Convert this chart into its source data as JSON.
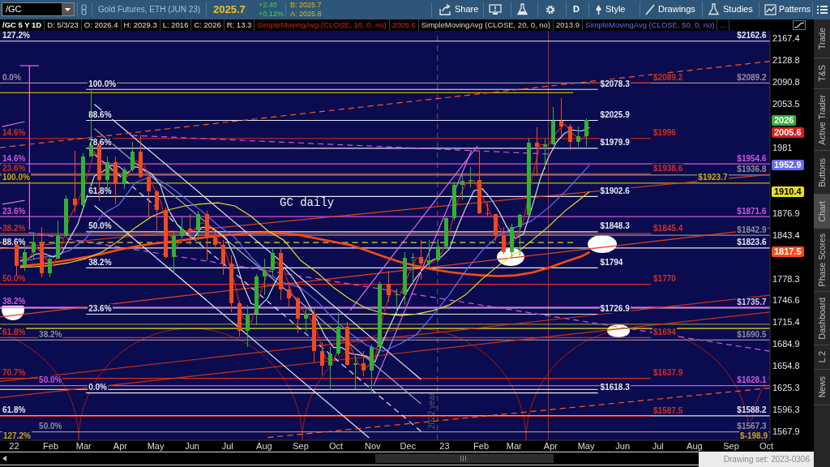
{
  "chart_data": {
    "type": "candlestick",
    "title": "Gold Futures, ETH (JUN 23)",
    "subtitle": "/GC 5 Y 1D",
    "log": true,
    "legend": "top",
    "xlim": [
      "2021-12-20",
      "2023-10-04"
    ],
    "ylim": [
      1556.5,
      2181.1
    ],
    "xticks": [
      {
        "value": "2022-01-01",
        "label": "22"
      },
      {
        "value": "2022-02-01",
        "label": "Feb"
      },
      {
        "value": "2022-03-01",
        "label": "Mar"
      },
      {
        "value": "2022-04-01",
        "label": "Apr"
      },
      {
        "value": "2022-05-01",
        "label": "May"
      },
      {
        "value": "2022-06-01",
        "label": "Jun"
      },
      {
        "value": "2022-07-01",
        "label": "Jul"
      },
      {
        "value": "2022-08-01",
        "label": "Aug"
      },
      {
        "value": "2022-09-01",
        "label": "Sep"
      },
      {
        "value": "2022-10-01",
        "label": "Oct"
      },
      {
        "value": "2022-11-01",
        "label": "Nov"
      },
      {
        "value": "2022-12-01",
        "label": "Dec"
      },
      {
        "value": "2023-01-01",
        "label": "23"
      },
      {
        "value": "2023-02-01",
        "label": "Feb"
      },
      {
        "value": "2023-03-01",
        "label": "Mar"
      },
      {
        "value": "2023-04-01",
        "label": "Apr"
      },
      {
        "value": "2023-05-01",
        "label": "May"
      },
      {
        "value": "2023-06-01",
        "label": "Jun"
      },
      {
        "value": "2023-07-01",
        "label": "Jul"
      },
      {
        "value": "2023-08-01",
        "label": "Aug"
      },
      {
        "value": "2023-09-01",
        "label": "Sep"
      },
      {
        "value": "2023-10-01",
        "label": "Oct"
      }
    ],
    "yticks": [
      2167.4,
      2128.8,
      2090.8,
      2053.5,
      1981,
      1876.9,
      1843.4,
      1778.3,
      1746.6,
      1715.4,
      1684.9,
      1654.8,
      1625.3,
      1596.3,
      1567.9
    ],
    "x": [
      "2022-01-03",
      "2022-01-10",
      "2022-01-17",
      "2022-01-24",
      "2022-01-31",
      "2022-02-07",
      "2022-02-14",
      "2022-02-21",
      "2022-02-28",
      "2022-03-07",
      "2022-03-14",
      "2022-03-21",
      "2022-03-28",
      "2022-04-04",
      "2022-04-11",
      "2022-04-18",
      "2022-04-25",
      "2022-05-02",
      "2022-05-09",
      "2022-05-16",
      "2022-05-23",
      "2022-05-30",
      "2022-06-06",
      "2022-06-13",
      "2022-06-20",
      "2022-06-27",
      "2022-07-04",
      "2022-07-11",
      "2022-07-18",
      "2022-07-25",
      "2022-08-01",
      "2022-08-08",
      "2022-08-15",
      "2022-08-22",
      "2022-08-29",
      "2022-09-05",
      "2022-09-12",
      "2022-09-19",
      "2022-09-26",
      "2022-10-03",
      "2022-10-10",
      "2022-10-17",
      "2022-10-24",
      "2022-10-31",
      "2022-11-07",
      "2022-11-14",
      "2022-11-21",
      "2022-11-28",
      "2022-12-05",
      "2022-12-12",
      "2022-12-19",
      "2022-12-26",
      "2023-01-02",
      "2023-01-09",
      "2023-01-16",
      "2023-01-23",
      "2023-01-30",
      "2023-02-06",
      "2023-02-13",
      "2023-02-20",
      "2023-02-27",
      "2023-03-06",
      "2023-03-13",
      "2023-03-20",
      "2023-03-27",
      "2023-04-03",
      "2023-04-10",
      "2023-04-17",
      "2023-04-24",
      "2023-05-01"
    ],
    "ohlc": [
      [
        1829,
        1831,
        1782,
        1797
      ],
      [
        1797,
        1830,
        1790,
        1817
      ],
      [
        1817,
        1848,
        1806,
        1832
      ],
      [
        1832,
        1855,
        1780,
        1786
      ],
      [
        1786,
        1812,
        1780,
        1808
      ],
      [
        1808,
        1865,
        1806,
        1842
      ],
      [
        1842,
        1905,
        1840,
        1899
      ],
      [
        1899,
        1976,
        1878,
        1889
      ],
      [
        1889,
        1972,
        1886,
        1966
      ],
      [
        1966,
        2078,
        1966,
        1985
      ],
      [
        1985,
        1992,
        1895,
        1929
      ],
      [
        1929,
        1966,
        1910,
        1958
      ],
      [
        1958,
        1967,
        1890,
        1923
      ],
      [
        1923,
        1950,
        1915,
        1945
      ],
      [
        1945,
        1990,
        1942,
        1974
      ],
      [
        1974,
        2003,
        1932,
        1934
      ],
      [
        1934,
        1939,
        1872,
        1911
      ],
      [
        1911,
        1913,
        1850,
        1882
      ],
      [
        1882,
        1886,
        1808,
        1810
      ],
      [
        1810,
        1850,
        1786,
        1842
      ],
      [
        1842,
        1870,
        1840,
        1853
      ],
      [
        1853,
        1876,
        1829,
        1850
      ],
      [
        1850,
        1880,
        1836,
        1875
      ],
      [
        1875,
        1880,
        1805,
        1840
      ],
      [
        1840,
        1847,
        1822,
        1829
      ],
      [
        1829,
        1836,
        1784,
        1801
      ],
      [
        1801,
        1813,
        1730,
        1742
      ],
      [
        1742,
        1745,
        1696,
        1703
      ],
      [
        1703,
        1740,
        1681,
        1727
      ],
      [
        1727,
        1785,
        1711,
        1781
      ],
      [
        1781,
        1808,
        1754,
        1791
      ],
      [
        1791,
        1824,
        1782,
        1816
      ],
      [
        1816,
        1824,
        1747,
        1762
      ],
      [
        1762,
        1773,
        1734,
        1749
      ],
      [
        1749,
        1752,
        1700,
        1721
      ],
      [
        1721,
        1736,
        1702,
        1728
      ],
      [
        1728,
        1735,
        1660,
        1675
      ],
      [
        1675,
        1688,
        1642,
        1655
      ],
      [
        1655,
        1682,
        1622,
        1672
      ],
      [
        1672,
        1730,
        1668,
        1709
      ],
      [
        1709,
        1716,
        1655,
        1656
      ],
      [
        1656,
        1668,
        1623,
        1658
      ],
      [
        1658,
        1675,
        1641,
        1648
      ],
      [
        1648,
        1684,
        1618,
        1681
      ],
      [
        1681,
        1774,
        1673,
        1771
      ],
      [
        1771,
        1790,
        1745,
        1754
      ],
      [
        1754,
        1764,
        1728,
        1755
      ],
      [
        1755,
        1818,
        1740,
        1809
      ],
      [
        1809,
        1816,
        1770,
        1810
      ],
      [
        1810,
        1836,
        1777,
        1800
      ],
      [
        1800,
        1836,
        1793,
        1805
      ],
      [
        1805,
        1837,
        1803,
        1826
      ],
      [
        1826,
        1871,
        1825,
        1869
      ],
      [
        1869,
        1926,
        1866,
        1921
      ],
      [
        1921,
        1940,
        1897,
        1928
      ],
      [
        1928,
        1949,
        1917,
        1929
      ],
      [
        1929,
        1975,
        1876,
        1877
      ],
      [
        1877,
        1893,
        1870,
        1875
      ],
      [
        1875,
        1876,
        1835,
        1842
      ],
      [
        1842,
        1856,
        1815,
        1817
      ],
      [
        1817,
        1860,
        1810,
        1856
      ],
      [
        1856,
        1877,
        1813,
        1874
      ],
      [
        1874,
        1997,
        1872,
        1989
      ],
      [
        1989,
        2014,
        1935,
        1983
      ],
      [
        1983,
        1995,
        1946,
        1987
      ],
      [
        1987,
        2049,
        1985,
        2025
      ],
      [
        2025,
        2063,
        2001,
        2016
      ],
      [
        2016,
        2020,
        1977,
        1990
      ],
      [
        1990,
        2016,
        1983,
        1999
      ],
      [
        1999,
        2029.3,
        1982,
        2026
      ]
    ],
    "colors": [
      "#f04a1c",
      "#34b034",
      "#34b034",
      "#f04a1c",
      "#34b034",
      "#34b034",
      "#34b034",
      "#f04a1c",
      "#34b034",
      "#34b034",
      "#f04a1c",
      "#34b034",
      "#f04a1c",
      "#34b034",
      "#34b034",
      "#f04a1c",
      "#f04a1c",
      "#f04a1c",
      "#f04a1c",
      "#34b034",
      "#34b034",
      "#f04a1c",
      "#34b034",
      "#f04a1c",
      "#f04a1c",
      "#f04a1c",
      "#f04a1c",
      "#f04a1c",
      "#34b034",
      "#34b034",
      "#34b034",
      "#34b034",
      "#f04a1c",
      "#f04a1c",
      "#f04a1c",
      "#34b034",
      "#f04a1c",
      "#f04a1c",
      "#34b034",
      "#34b034",
      "#f04a1c",
      "#34b034",
      "#f04a1c",
      "#34b034",
      "#34b034",
      "#f04a1c",
      "#34b034",
      "#34b034",
      "#34b034",
      "#f04a1c",
      "#34b034",
      "#34b034",
      "#34b034",
      "#34b034",
      "#34b034",
      "#34b034",
      "#f04a1c",
      "#f04a1c",
      "#f04a1c",
      "#f04a1c",
      "#34b034",
      "#34b034",
      "#34b034",
      "#f04a1c",
      "#34b034",
      "#34b034",
      "#f04a1c",
      "#f04a1c",
      "#34b034",
      "#34b034"
    ],
    "series": [
      {
        "type": "line",
        "name": "SimpleMovingAvg (CLOSE, 10, 0, no)",
        "color": "#d42020",
        "x": [
          "2022-01-06",
          "2022-01-13",
          "2022-01-20",
          "2022-01-27",
          "2022-02-03",
          "2022-02-10",
          "2022-02-17",
          "2022-02-24",
          "2022-03-03",
          "2022-03-10",
          "2022-03-17",
          "2022-03-24",
          "2022-03-31",
          "2022-04-07",
          "2022-04-14",
          "2022-04-21",
          "2022-04-28",
          "2022-05-05",
          "2022-05-12",
          "2022-05-19",
          "2022-05-26",
          "2022-06-02",
          "2022-06-09",
          "2022-06-16",
          "2022-06-23",
          "2022-06-30",
          "2022-07-07",
          "2022-07-14",
          "2022-07-21",
          "2022-07-28",
          "2022-08-04",
          "2022-08-11",
          "2022-08-18",
          "2022-08-25",
          "2022-09-01",
          "2022-09-08",
          "2022-09-15",
          "2022-09-22",
          "2022-09-29",
          "2022-10-06",
          "2022-10-13",
          "2022-10-20",
          "2022-10-27",
          "2022-11-03",
          "2022-11-10",
          "2022-11-17",
          "2022-11-24",
          "2022-12-01",
          "2022-12-08",
          "2022-12-15",
          "2022-12-22",
          "2022-12-29",
          "2023-01-05",
          "2023-01-12",
          "2023-01-19",
          "2023-01-26",
          "2023-02-02",
          "2023-02-09",
          "2023-02-16",
          "2023-02-23",
          "2023-03-02",
          "2023-03-09",
          "2023-03-16",
          "2023-03-23",
          "2023-03-30",
          "2023-04-06",
          "2023-04-13",
          "2023-04-20",
          "2023-04-27",
          "2023-05-04"
        ],
        "values": [
          1810,
          1807,
          1825,
          1809,
          1797,
          1825,
          1870,
          1894,
          1928,
          1975,
          1957,
          1944,
          1940,
          1934,
          1960,
          1954,
          1922,
          1896,
          1846,
          1826,
          1848,
          1851,
          1862,
          1858,
          1834,
          1815,
          1771,
          1722,
          1715,
          1754,
          1786,
          1803,
          1789,
          1755,
          1735,
          1724,
          1701,
          1665,
          1663,
          1690,
          1682,
          1657,
          1653,
          1664,
          1726,
          1762,
          1754,
          1782,
          1809,
          1805,
          1802,
          1815,
          1847,
          1895,
          1924,
          1928,
          1903,
          1876,
          1858,
          1829,
          1836,
          1865,
          1931,
          1986,
          1985,
          2006,
          2020,
          2003,
          1994,
          2005.6
        ]
      },
      {
        "type": "line",
        "name": "SimpleMovingAvg (CLOSE, 20, 0, no)",
        "color": "#d8d8d8",
        "x": [
          "2022-01-06",
          "2022-01-13",
          "2022-01-20",
          "2022-01-27",
          "2022-02-03",
          "2022-02-10",
          "2022-02-17",
          "2022-02-24",
          "2022-03-03",
          "2022-03-10",
          "2022-03-17",
          "2022-03-24",
          "2022-03-31",
          "2022-04-07",
          "2022-04-14",
          "2022-04-21",
          "2022-04-28",
          "2022-05-05",
          "2022-05-12",
          "2022-05-19",
          "2022-05-26",
          "2022-06-02",
          "2022-06-09",
          "2022-06-16",
          "2022-06-23",
          "2022-06-30",
          "2022-07-07",
          "2022-07-14",
          "2022-07-21",
          "2022-07-28",
          "2022-08-04",
          "2022-08-11",
          "2022-08-18",
          "2022-08-25",
          "2022-09-01",
          "2022-09-08",
          "2022-09-15",
          "2022-09-22",
          "2022-09-29",
          "2022-10-06",
          "2022-10-13",
          "2022-10-20",
          "2022-10-27",
          "2022-11-03",
          "2022-11-10",
          "2022-11-17",
          "2022-11-24",
          "2022-12-01",
          "2022-12-08",
          "2022-12-15",
          "2022-12-22",
          "2022-12-29",
          "2023-01-05",
          "2023-01-12",
          "2023-01-19",
          "2023-01-26",
          "2023-02-02",
          "2023-02-09",
          "2023-02-16",
          "2023-02-23",
          "2023-03-02",
          "2023-03-09",
          "2023-03-16",
          "2023-03-23",
          "2023-03-30",
          "2023-04-06",
          "2023-04-13",
          "2023-04-20",
          "2023-04-27",
          "2023-05-04"
        ],
        "values": [
          1805,
          1808,
          1815,
          1815,
          1810,
          1815,
          1838,
          1860,
          1898,
          1935,
          1942,
          1952,
          1950,
          1940,
          1950,
          1946,
          1938,
          1920,
          1882,
          1860,
          1846,
          1838,
          1855,
          1855,
          1848,
          1838,
          1810,
          1770,
          1742,
          1738,
          1750,
          1775,
          1795,
          1780,
          1762,
          1740,
          1718,
          1695,
          1680,
          1680,
          1672,
          1670,
          1668,
          1660,
          1690,
          1715,
          1740,
          1762,
          1780,
          1795,
          1806,
          1810,
          1822,
          1855,
          1885,
          1912,
          1915,
          1900,
          1880,
          1855,
          1838,
          1845,
          1885,
          1930,
          1965,
          1990,
          2005,
          2010,
          2008,
          2013.9
        ]
      },
      {
        "type": "line",
        "name": "SimpleMovingAvg (CLOSE, 50, 0, no)",
        "color": "#6a6af5",
        "x": [
          "2022-01-06",
          "2022-01-20",
          "2022-02-03",
          "2022-02-17",
          "2022-03-03",
          "2022-03-17",
          "2022-03-31",
          "2022-04-14",
          "2022-04-28",
          "2022-05-12",
          "2022-05-26",
          "2022-06-09",
          "2022-06-23",
          "2022-07-07",
          "2022-07-21",
          "2022-08-04",
          "2022-08-18",
          "2022-09-01",
          "2022-09-15",
          "2022-09-29",
          "2022-10-13",
          "2022-10-27",
          "2022-11-10",
          "2022-11-24",
          "2022-12-08",
          "2022-12-22",
          "2023-01-05",
          "2023-01-19",
          "2023-02-02",
          "2023-02-16",
          "2023-03-02",
          "2023-03-16",
          "2023-03-30",
          "2023-04-13",
          "2023-04-27",
          "2023-05-04"
        ],
        "values": [
          1803,
          1808,
          1812,
          1820,
          1838,
          1875,
          1890,
          1925,
          1935,
          1920,
          1900,
          1880,
          1858,
          1840,
          1810,
          1785,
          1772,
          1765,
          1745,
          1720,
          1700,
          1683,
          1675,
          1685,
          1698,
          1725,
          1755,
          1790,
          1820,
          1843,
          1855,
          1865,
          1885,
          1910,
          1938,
          1952.9
        ]
      },
      {
        "type": "line",
        "color": "#e8e020",
        "x": [
          "2022-01-06",
          "2022-01-20",
          "2022-02-03",
          "2022-02-17",
          "2022-03-03",
          "2022-03-17",
          "2022-03-31",
          "2022-04-14",
          "2022-04-28",
          "2022-05-12",
          "2022-05-26",
          "2022-06-09",
          "2022-06-23",
          "2022-07-07",
          "2022-07-21",
          "2022-08-04",
          "2022-08-18",
          "2022-09-01",
          "2022-09-15",
          "2022-09-29",
          "2022-10-13",
          "2022-10-27",
          "2022-11-10",
          "2022-11-24",
          "2022-12-08",
          "2022-12-22",
          "2023-01-05",
          "2023-01-19",
          "2023-02-02",
          "2023-02-16",
          "2023-03-02",
          "2023-03-16",
          "2023-03-30",
          "2023-04-13",
          "2023-04-27",
          "2023-05-04"
        ],
        "values": [
          1795,
          1796,
          1798,
          1802,
          1808,
          1818,
          1835,
          1855,
          1872,
          1882,
          1888,
          1891,
          1893,
          1888,
          1872,
          1850,
          1835,
          1805,
          1787,
          1765,
          1748,
          1735,
          1728,
          1725,
          1727,
          1732,
          1740,
          1755,
          1778,
          1798,
          1815,
          1835,
          1856,
          1880,
          1900,
          1910.4
        ]
      },
      {
        "type": "line",
        "color": "#ff4a14",
        "x": [
          "2022-01-06",
          "2022-01-20",
          "2022-02-03",
          "2022-02-17",
          "2022-03-03",
          "2022-03-17",
          "2022-03-31",
          "2022-04-14",
          "2022-04-28",
          "2022-05-12",
          "2022-05-26",
          "2022-06-09",
          "2022-06-23",
          "2022-07-07",
          "2022-07-21",
          "2022-08-04",
          "2022-08-18",
          "2022-09-01",
          "2022-09-15",
          "2022-09-29",
          "2022-10-13",
          "2022-10-27",
          "2022-11-10",
          "2022-11-24",
          "2022-12-08",
          "2022-12-22",
          "2023-01-05",
          "2023-01-19",
          "2023-02-02",
          "2023-02-16",
          "2023-03-02",
          "2023-03-16",
          "2023-03-30",
          "2023-04-13",
          "2023-04-27",
          "2023-05-04"
        ],
        "values": [
          1797,
          1799,
          1802,
          1806,
          1810,
          1815,
          1821,
          1826,
          1830,
          1833,
          1836,
          1839,
          1842,
          1844,
          1846,
          1847,
          1846,
          1843,
          1838,
          1833,
          1828,
          1820,
          1811,
          1803,
          1797,
          1792,
          1788,
          1785,
          1783,
          1782,
          1783,
          1787,
          1794,
          1803,
          1811,
          1817.5
        ]
      },
      {
        "type": "line",
        "color": "#ff5a1e",
        "line_style": "dashed",
        "x": [
          "2021-12-20",
          "2023-10-04"
        ],
        "values": [
          1981,
          2127
        ]
      },
      {
        "type": "line",
        "color": "#ff5a1e",
        "line_style": "dashed",
        "x": [
          "2022-08-04",
          "2023-10-04"
        ],
        "values": [
          1560,
          1625
        ]
      },
      {
        "type": "line",
        "color": "#d058dc",
        "line_style": "dashed",
        "x": [
          "2021-12-20",
          "2023-10-04"
        ],
        "values": [
          1854,
          1675
        ]
      },
      {
        "type": "line",
        "color": "#d058dc",
        "line_style": "dashed",
        "x": [
          "2022-04-11",
          "2023-03-30"
        ],
        "values": [
          2001,
          1970.5
        ]
      },
      {
        "type": "line",
        "color": "#e6e6ee",
        "x": [
          "2022-03-10",
          "2022-12-12"
        ],
        "values": [
          2053.2,
          1636.5
        ]
      },
      {
        "type": "line",
        "color": "#a0a0b0",
        "x": [
          "2022-03-10",
          "2022-12-12"
        ],
        "values": [
          2012.5,
          1604
        ]
      },
      {
        "type": "line",
        "color": "#e6e6ee",
        "line_style": "dashed",
        "x": [
          "2022-03-10",
          "2022-12-12"
        ],
        "values": [
          1970,
          1568
        ]
      },
      {
        "type": "line",
        "color": "#e6e6ee",
        "x": [
          "2022-03-10",
          "2022-10-29"
        ],
        "values": [
          1888.8,
          1559.7
        ]
      },
      {
        "type": "line",
        "color": "#e070e8",
        "x": [
          "2022-10-13",
          "2023-01-29"
        ],
        "values": [
          1732.2,
          1983.7
        ]
      },
      {
        "type": "line",
        "color": "#e070e8",
        "x": [
          "2022-11-02",
          "2023-01-24"
        ],
        "values": [
          1629,
          1977
        ]
      },
      {
        "type": "line",
        "color": "#e070e8",
        "x": [
          "2022-01-14",
          "2022-01-14"
        ],
        "values": [
          2119.3,
          1851.8
        ]
      },
      {
        "type": "line",
        "color": "#e070e8",
        "x": [
          "2022-01-06",
          "2022-01-22"
        ],
        "values": [
          2119.3,
          2119.3
        ]
      },
      {
        "type": "line",
        "color": "#e070e8",
        "x": [
          "2021-12-22",
          "2022-01-10"
        ],
        "values": [
          2015.7,
          2023.8
        ]
      },
      {
        "type": "line",
        "color": "#e070e8",
        "x": [
          "2021-12-22",
          "2022-01-10"
        ],
        "values": [
          1890.6,
          1896.8
        ]
      },
      {
        "type": "line",
        "color": "#e0401e",
        "x": [
          "2021-12-20",
          "2023-10-04"
        ],
        "values": [
          1722.9,
          1854
        ]
      },
      {
        "type": "line",
        "color": "#e0401e",
        "x": [
          "2021-12-20",
          "2023-10-04"
        ],
        "values": [
          1822.3,
          1937.8
        ]
      },
      {
        "type": "line",
        "color": "#c8321a",
        "x": [
          "2021-12-20",
          "2023-10-04"
        ],
        "values": [
          1633.9,
          1754
        ]
      },
      {
        "type": "line",
        "color": "#c8321a",
        "x": [
          "2021-12-20",
          "2023-10-04"
        ],
        "values": [
          1612.2,
          1729.9
        ]
      },
      {
        "type": "line",
        "color": "#d8d820",
        "line_style": "dashed",
        "x": [
          "2021-12-20",
          "2023-04-20"
        ],
        "values": [
          1832,
          1832
        ]
      },
      {
        "type": "line",
        "color": "#c8b000",
        "x": [
          "2021-12-20",
          "2023-04-20"
        ],
        "values": [
          2072.7,
          2072.7
        ]
      },
      {
        "type": "line",
        "color": "#8c8c2c",
        "x": [
          "2021-12-20",
          "2023-10-04"
        ],
        "values": [
          1712.6,
          1712.6
        ]
      },
      {
        "type": "line",
        "color": "#e2e21e",
        "x": [
          "2021-12-20",
          "2023-10-04"
        ],
        "values": [
          1706.8,
          1706.8
        ]
      },
      {
        "type": "line",
        "color": "#e2e21e",
        "x": [
          "2021-12-20",
          "2023-05-11"
        ],
        "values": [
          1623,
          1623
        ]
      },
      {
        "type": "line",
        "color": "#e6e6ee",
        "x": [
          "2022-03-03",
          "2023-05-11"
        ],
        "values": [
          2078.3,
          2078.3
        ],
        "value_labels": [
          null,
          "$2078.3"
        ]
      },
      {
        "type": "line",
        "color": "#e6e6ee",
        "x": [
          "2022-03-03",
          "2023-05-11"
        ],
        "values": [
          2025.9,
          2025.9
        ],
        "value_labels": [
          null,
          "$2025.9"
        ]
      },
      {
        "type": "line",
        "color": "#e6e6ee",
        "x": [
          "2022-03-03",
          "2023-05-11"
        ],
        "values": [
          1979.9,
          1979.9
        ],
        "value_labels": [
          null,
          "$1979.9"
        ]
      },
      {
        "type": "line",
        "color": "#e6e6ee",
        "x": [
          "2022-03-03",
          "2023-05-11"
        ],
        "values": [
          1902.6,
          1902.6
        ],
        "value_labels": [
          null,
          "$1902.6"
        ]
      },
      {
        "type": "line",
        "color": "#e6e6ee",
        "x": [
          "2022-03-03",
          "2023-05-11"
        ],
        "values": [
          1848.3,
          1848.3
        ],
        "value_labels": [
          null,
          "$1848.3"
        ]
      },
      {
        "type": "line",
        "color": "#e6e6ee",
        "x": [
          "2022-03-03",
          "2023-05-11"
        ],
        "values": [
          1794,
          1794
        ],
        "value_labels": [
          null,
          "$1794"
        ]
      },
      {
        "type": "line",
        "color": "#e6e6ee",
        "x": [
          "2022-03-03",
          "2023-05-11"
        ],
        "values": [
          1726.9,
          1726.9
        ],
        "value_labels": [
          null,
          "$1726.9"
        ]
      },
      {
        "type": "line",
        "color": "#e6e6ee",
        "x": [
          "2022-03-03",
          "2023-05-11"
        ],
        "values": [
          1618.3,
          1618.3
        ],
        "value_labels": [
          null,
          "$1618.3"
        ]
      },
      {
        "type": "line",
        "color": "#d2301e",
        "x": [
          "2023-05-04",
          "2023-06-25"
        ],
        "values": [
          2089.2,
          2089.2
        ],
        "value_labels": [
          null,
          "$2089.2"
        ]
      },
      {
        "type": "line",
        "color": "#d2301e",
        "x": [
          "2021-12-20",
          "2023-06-25"
        ],
        "values": [
          1996,
          1996
        ],
        "value_labels": [
          null,
          "$1996"
        ]
      },
      {
        "type": "line",
        "color": "#d2301e",
        "x": [
          "2021-12-20",
          "2023-06-25"
        ],
        "values": [
          1938.6,
          1938.6
        ],
        "value_labels": [
          null,
          "$1938.6"
        ]
      },
      {
        "type": "line",
        "color": "#d2301e",
        "x": [
          "2021-12-20",
          "2023-06-25"
        ],
        "values": [
          1845.4,
          1845.4
        ],
        "value_labels": [
          null,
          "$1845.4"
        ]
      },
      {
        "type": "line",
        "color": "#d2301e",
        "x": [
          "2021-12-20",
          "2023-06-25"
        ],
        "values": [
          1770,
          1770
        ],
        "value_labels": [
          null,
          "$1770"
        ]
      },
      {
        "type": "line",
        "color": "#d2301e",
        "x": [
          "2021-12-20",
          "2023-06-25"
        ],
        "values": [
          1694,
          1694
        ],
        "value_labels": [
          null,
          "$1694"
        ]
      },
      {
        "type": "line",
        "color": "#d2301e",
        "x": [
          "2021-12-20",
          "2023-06-25"
        ],
        "values": [
          1637.9,
          1637.9
        ],
        "value_labels": [
          null,
          "$1637.9"
        ]
      },
      {
        "type": "line",
        "color": "#d2301e",
        "x": [
          "2021-12-20",
          "2023-06-25"
        ],
        "values": [
          1587.5,
          1587.5
        ],
        "value_labels": [
          null,
          "$1587.5"
        ]
      },
      {
        "type": "line",
        "color": "#e6e6ee",
        "x": [
          "2021-12-20",
          "2023-09-04",
          "2023-10-04"
        ],
        "values": [
          2162.6,
          2162.6,
          2162.6
        ],
        "value_labels": [
          null,
          "$2162.6",
          null
        ]
      },
      {
        "type": "line",
        "color": "#9c8ca0",
        "x": [
          "2021-12-20",
          "2023-09-04",
          "2023-10-04"
        ],
        "values": [
          2089.2,
          2089.2,
          2089.2
        ],
        "value_labels": [
          null,
          "$2089.2",
          null
        ]
      },
      {
        "type": "line",
        "color": "#d058dc",
        "x": [
          "2021-12-20",
          "2023-09-04",
          "2023-10-04"
        ],
        "values": [
          1954.6,
          1954.6,
          1954.6
        ],
        "value_labels": [
          null,
          "$1954.6",
          null
        ]
      },
      {
        "type": "line",
        "color": "#8e8e9a",
        "x": [
          "2021-12-20",
          "2023-09-04",
          "2023-10-04"
        ],
        "values": [
          1936.8,
          1936.8,
          1936.8
        ],
        "value_labels": [
          null,
          "$1936.8",
          null
        ]
      },
      {
        "type": "line",
        "color": "#c8b000",
        "x": [
          "2021-12-20",
          "2023-08-02",
          "2023-10-04"
        ],
        "values": [
          1923.7,
          1923.7,
          1923.7
        ],
        "value_labels": [
          null,
          "$1923.7",
          null
        ]
      },
      {
        "type": "line",
        "color": "#d058dc",
        "x": [
          "2021-12-20",
          "2023-09-04",
          "2023-10-04"
        ],
        "values": [
          1871.6,
          1871.6,
          1871.6
        ],
        "value_labels": [
          null,
          "$1871.6",
          null
        ]
      },
      {
        "type": "line",
        "color": "#8e8e9a",
        "x": [
          "2021-12-20",
          "2023-09-04",
          "2023-10-04"
        ],
        "values": [
          1842.9,
          1842.9,
          1842.9
        ],
        "value_labels": [
          null,
          "$1842.9",
          null
        ]
      },
      {
        "type": "line",
        "color": "#e6e6ee",
        "x": [
          "2021-12-20",
          "2023-09-04",
          "2023-10-04"
        ],
        "values": [
          1823.6,
          1823.6,
          1823.6
        ],
        "value_labels": [
          null,
          "$1823.6",
          null
        ]
      },
      {
        "type": "line",
        "color": "#d058dc",
        "x": [
          "2021-12-20",
          "2023-10-04"
        ],
        "values": [
          1737,
          1737
        ]
      },
      {
        "type": "line",
        "color": "#d8cce8",
        "x": [
          "2021-12-20",
          "2023-09-04",
          "2023-10-04"
        ],
        "values": [
          1735.7,
          1735.7,
          1735.7
        ],
        "value_labels": [
          null,
          "$1735.7",
          null
        ]
      },
      {
        "type": "line",
        "color": "#8e8e9a",
        "x": [
          "2021-12-20",
          "2023-09-04",
          "2023-10-04"
        ],
        "values": [
          1690.5,
          1690.5,
          1690.5
        ],
        "value_labels": [
          null,
          "$1690.5",
          null
        ]
      },
      {
        "type": "line",
        "color": "#d058dc",
        "x": [
          "2021-12-20",
          "2023-09-04",
          "2023-10-04"
        ],
        "values": [
          1628.1,
          1628.1,
          1628.1
        ],
        "value_labels": [
          null,
          "$1628.1",
          null
        ]
      },
      {
        "type": "line",
        "color": "#e6e6ee",
        "x": [
          "2021-12-20",
          "2023-09-04",
          "2023-10-04"
        ],
        "values": [
          1588.2,
          1588.2,
          1588.2
        ],
        "value_labels": [
          null,
          "$1588.2",
          null
        ]
      },
      {
        "type": "line",
        "color": "#8e8e9a",
        "x": [
          "2021-12-20",
          "2023-09-04",
          "2023-10-04"
        ],
        "values": [
          1567.3,
          1567.3,
          1567.3
        ],
        "value_labels": [
          null,
          "$1567.3",
          null
        ]
      }
    ],
    "ref_lines": [
      {
        "axis": "x",
        "value": "2023-03-30",
        "color": "#b02a1a"
      },
      {
        "axis": "x",
        "value": "2022-12-26",
        "label": "2022 year",
        "color": "#5c5c6c",
        "line_style": "dashed"
      }
    ],
    "annotations": [
      "/GC",
      "2025.7",
      "+2.40",
      "+0.12%",
      "B: 2025.7",
      "A: 2025.8",
      "Share",
      "D",
      "Style",
      "Drawings",
      "Studies",
      "Patterns",
      "D: 5/3/23",
      "O: 2026.4",
      "H: 2029.3",
      "L: 2016",
      "C: 2026",
      "R: 13.3",
      "2005.6",
      "2013.9",
      "...",
      "Trade",
      "T&S",
      "Active Trader",
      "Buttons",
      "Chart",
      "Phase Scores",
      "Dashboard",
      "L 2",
      "News",
      "Drawing set: 2023-0306",
      "GC daily",
      "127.2%",
      "$-198.9",
      {
        "text": "2026",
        "y": 2026
      },
      {
        "text": "2005.6",
        "y": 2005.6
      },
      {
        "text": "1952.9",
        "y": 1952.9
      },
      {
        "text": "1910.4",
        "y": 1910.4
      },
      {
        "text": "1817.5",
        "y": 1817.5
      },
      {
        "text": "100.0%",
        "x": "2022-03-03",
        "y": 2078.3
      },
      {
        "text": "88.6%",
        "x": "2022-03-03",
        "y": 2025.9
      },
      {
        "text": "78.6%",
        "x": "2022-03-03",
        "y": 1979.9
      },
      {
        "text": "61.8%",
        "x": "2022-03-03",
        "y": 1902.6
      },
      {
        "text": "50.0%",
        "x": "2022-03-03",
        "y": 1848.3
      },
      {
        "text": "38.2%",
        "x": "2022-03-03",
        "y": 1794
      },
      {
        "text": "23.6%",
        "x": "2022-03-03",
        "y": 1726.9
      },
      {
        "text": "0.0%",
        "x": "2022-03-03",
        "y": 1618.3
      },
      {
        "text": "127.2%",
        "x": "2021-12-20",
        "y": 2162.6
      },
      {
        "text": "0.0%",
        "x": "2021-12-20",
        "y": 2089.2
      },
      {
        "text": "14.6%",
        "x": "2021-12-20",
        "y": 1996
      },
      {
        "text": "14.6%",
        "x": "2021-12-20",
        "y": 1954.6
      },
      {
        "text": "23.6%",
        "x": "2021-12-20",
        "y": 1938.6
      },
      {
        "text": "100.0%",
        "x": "2021-12-20",
        "y": 1923.7
      },
      {
        "text": "23.6%",
        "x": "2021-12-20",
        "y": 1871.6
      },
      {
        "text": "38.2%",
        "x": "2021-12-20",
        "y": 1845.4
      },
      {
        "text": "88.6%",
        "x": "2021-12-20",
        "y": 1823.6
      },
      {
        "text": "50.0%",
        "x": "2021-12-20",
        "y": 1770
      },
      {
        "text": "38.2%",
        "x": "2021-12-20",
        "y": 1737
      },
      {
        "text": "61.8%",
        "x": "2021-12-20",
        "y": 1694
      },
      {
        "text": "70.7%",
        "x": "2021-12-20",
        "y": 1637.9
      },
      {
        "text": "61.8%",
        "x": "2021-12-20",
        "y": 1588.2
      },
      {
        "text": "38.2%",
        "x": "2022-01-20",
        "y": 1690.5
      },
      {
        "text": "50.0%",
        "x": "2022-01-20",
        "y": 1628.1
      },
      {
        "text": "50.0%",
        "x": "2022-01-20",
        "y": 1567.3
      }
    ]
  }
}
